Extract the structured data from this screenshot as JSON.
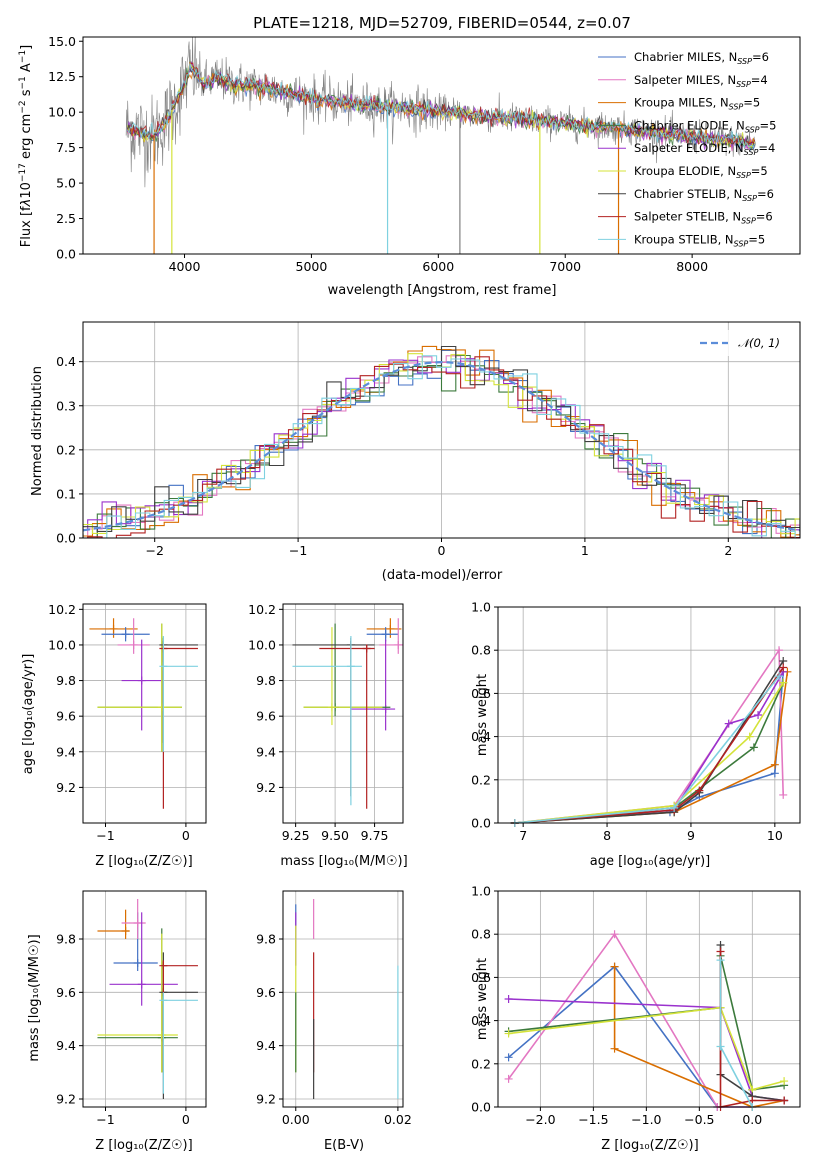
{
  "chart_data": [
    {
      "id": "spectrum",
      "type": "line",
      "title": "PLATE=1218, MJD=52709, FIBERID=0544, z=0.07",
      "xlabel": "wavelength [Angstrom, rest frame]",
      "ylabel": "Flux [f_λ10^{-17} erg cm^{-2} s^{-1} A^{-1}]",
      "xlim": [
        3200,
        8850
      ],
      "ylim": [
        0,
        15.3
      ],
      "xticks": [
        4000,
        5000,
        6000,
        7000,
        8000
      ],
      "yticks": [
        0.0,
        2.5,
        5.0,
        7.5,
        10.0,
        12.5,
        15.0
      ],
      "data_series_color": "#808080",
      "series": [
        {
          "name": "Chabrier MILES, N_SSP=6",
          "color": "#4472c4"
        },
        {
          "name": "Salpeter MILES, N_SSP=4",
          "color": "#e377c2"
        },
        {
          "name": "Kroupa MILES, N_SSP=5",
          "color": "#d96e00"
        },
        {
          "name": "Chabrier ELODIE, N_SSP=5",
          "color": "#3c7a3c"
        },
        {
          "name": "Salpeter ELODIE, N_SSP=4",
          "color": "#9a32cd"
        },
        {
          "name": "Kroupa ELODIE, N_SSP=5",
          "color": "#d4e33a"
        },
        {
          "name": "Chabrier STELIB, N_SSP=6",
          "color": "#404040"
        },
        {
          "name": "Salpeter STELIB, N_SSP=6",
          "color": "#b22222"
        },
        {
          "name": "Kroupa STELIB, N_SSP=5",
          "color": "#7fd1e0"
        }
      ],
      "continuum": {
        "x": [
          3550,
          3650,
          3750,
          3850,
          3950,
          4050,
          4150,
          4250,
          4400,
          4600,
          4800,
          5000,
          5300,
          5600,
          5900,
          6200,
          6500,
          6800,
          7100,
          7400,
          7700,
          8000,
          8300,
          8500
        ],
        "y": [
          8.8,
          8.6,
          8.3,
          9.3,
          11.0,
          13.2,
          12.0,
          12.4,
          12.0,
          11.8,
          11.4,
          11.0,
          10.6,
          10.4,
          10.2,
          9.9,
          9.6,
          9.4,
          9.1,
          8.9,
          8.6,
          8.3,
          8.0,
          7.8
        ]
      },
      "spikes": [
        {
          "x": 3760,
          "color": "#d96e00"
        },
        {
          "x": 3900,
          "color": "#d4e33a"
        },
        {
          "x": 5600,
          "color": "#7fd1e0"
        },
        {
          "x": 6170,
          "color": "#808080"
        },
        {
          "x": 6800,
          "color": "#d4e33a"
        },
        {
          "x": 7420,
          "color": "#d96e00"
        }
      ]
    },
    {
      "id": "residuals",
      "type": "line",
      "xlabel": "(data-model)/error",
      "ylabel": "Normed distribution",
      "xlim": [
        -2.5,
        2.5
      ],
      "ylim": [
        0,
        0.49
      ],
      "xticks": [
        -2,
        -1,
        0,
        1,
        2
      ],
      "yticks": [
        0.0,
        0.1,
        0.2,
        0.3,
        0.4
      ],
      "grid": true,
      "legend": {
        "label": "𝒩(0, 1)",
        "position": "top-right"
      }
    },
    {
      "id": "age-vs-z",
      "type": "scatter",
      "xlabel": "Z [log₁₀(Z/Z☉)]",
      "ylabel": "age  [log₁₀(age/yr)]",
      "xlim": [
        -1.28,
        0.25
      ],
      "ylim": [
        9.0,
        10.23
      ],
      "xticks": [
        -1,
        0
      ],
      "yticks": [
        9.2,
        9.4,
        9.6,
        9.8,
        10.0,
        10.2
      ],
      "grid": true,
      "points": [
        {
          "color": "#d96e00",
          "x": -0.9,
          "xlo": -1.2,
          "xhi": -0.6,
          "y": 10.09,
          "ylo": 10.04,
          "yhi": 10.15
        },
        {
          "color": "#4472c4",
          "x": -0.75,
          "xlo": -1.05,
          "xhi": -0.45,
          "y": 10.06,
          "ylo": 10.02,
          "yhi": 10.1
        },
        {
          "color": "#e377c2",
          "x": -0.65,
          "xlo": -0.85,
          "xhi": -0.45,
          "y": 10.0,
          "ylo": 9.95,
          "yhi": 10.15
        },
        {
          "color": "#9a32cd",
          "x": -0.55,
          "xlo": -0.8,
          "xhi": -0.3,
          "y": 9.8,
          "ylo": 9.52,
          "yhi": 10.03
        },
        {
          "color": "#3c7a3c",
          "x": -0.3,
          "xlo": -1.1,
          "xhi": -0.05,
          "y": 9.65,
          "ylo": 9.4,
          "yhi": 10.12
        },
        {
          "color": "#d4e33a",
          "x": -0.3,
          "xlo": -1.1,
          "xhi": -0.05,
          "y": 9.65,
          "ylo": 9.4,
          "yhi": 10.12
        },
        {
          "color": "#404040",
          "x": -0.28,
          "xlo": -0.28,
          "xhi": 0.15,
          "y": 10.0,
          "ylo": 9.45,
          "yhi": 10.04
        },
        {
          "color": "#b22222",
          "x": -0.28,
          "xlo": -0.28,
          "xhi": 0.15,
          "y": 9.98,
          "ylo": 9.08,
          "yhi": 10.0
        },
        {
          "color": "#7fd1e0",
          "x": -0.28,
          "xlo": -0.28,
          "xhi": 0.15,
          "y": 9.88,
          "ylo": 9.4,
          "yhi": 10.05
        }
      ]
    },
    {
      "id": "age-vs-mass",
      "type": "scatter",
      "xlabel": "mass [log₁₀(M/M☉)]",
      "ylabel": "",
      "xlim": [
        9.17,
        9.93
      ],
      "ylim": [
        9.0,
        10.23
      ],
      "xticks": [
        9.25,
        9.5,
        9.75
      ],
      "yticks": [
        9.2,
        9.4,
        9.6,
        9.8,
        10.0,
        10.2
      ],
      "grid": true,
      "points": [
        {
          "color": "#d96e00",
          "x": 9.85,
          "xlo": 9.7,
          "xhi": 9.92,
          "y": 10.09,
          "ylo": 10.04,
          "yhi": 10.15
        },
        {
          "color": "#4472c4",
          "x": 9.82,
          "xlo": 9.7,
          "xhi": 9.9,
          "y": 10.06,
          "ylo": 10.02,
          "yhi": 10.1
        },
        {
          "color": "#e377c2",
          "x": 9.9,
          "xlo": 9.78,
          "xhi": 9.93,
          "y": 10.0,
          "ylo": 9.95,
          "yhi": 10.15
        },
        {
          "color": "#9a32cd",
          "x": 9.82,
          "xlo": 9.6,
          "xhi": 9.88,
          "y": 9.64,
          "ylo": 9.52,
          "yhi": 10.03
        },
        {
          "color": "#3c7a3c",
          "x": 9.5,
          "xlo": 9.3,
          "xhi": 9.85,
          "y": 9.65,
          "ylo": 9.6,
          "yhi": 10.12
        },
        {
          "color": "#d4e33a",
          "x": 9.48,
          "xlo": 9.3,
          "xhi": 9.8,
          "y": 9.65,
          "ylo": 9.55,
          "yhi": 10.1
        },
        {
          "color": "#404040",
          "x": 9.6,
          "xlo": 9.23,
          "xhi": 9.75,
          "y": 10.0,
          "ylo": 9.15,
          "yhi": 10.04
        },
        {
          "color": "#b22222",
          "x": 9.7,
          "xlo": 9.4,
          "xhi": 9.75,
          "y": 9.98,
          "ylo": 9.08,
          "yhi": 10.0
        },
        {
          "color": "#7fd1e0",
          "x": 9.6,
          "xlo": 9.23,
          "xhi": 9.67,
          "y": 9.88,
          "ylo": 9.1,
          "yhi": 10.05
        }
      ]
    },
    {
      "id": "mass-weight-vs-age",
      "type": "line",
      "xlabel": "age  [log₁₀(age/yr)]",
      "ylabel": "mass weight",
      "xlim": [
        6.7,
        10.3
      ],
      "ylim": [
        0,
        1.0
      ],
      "xticks": [
        7,
        8,
        9,
        10
      ],
      "yticks": [
        0.0,
        0.2,
        0.4,
        0.6,
        0.8,
        1.0
      ],
      "grid": true,
      "series": [
        {
          "color": "#4472c4",
          "x": [
            6.9,
            8.75,
            9.1,
            10.0,
            10.1
          ],
          "y": [
            0.0,
            0.05,
            0.12,
            0.23,
            0.7
          ]
        },
        {
          "color": "#e377c2",
          "x": [
            6.9,
            8.8,
            10.05,
            10.1
          ],
          "y": [
            0.0,
            0.08,
            0.8,
            0.13
          ]
        },
        {
          "color": "#d96e00",
          "x": [
            6.9,
            8.8,
            10.0,
            10.15
          ],
          "y": [
            0.0,
            0.05,
            0.27,
            0.7
          ]
        },
        {
          "color": "#3c7a3c",
          "x": [
            6.9,
            8.8,
            9.75,
            10.1
          ],
          "y": [
            0.0,
            0.07,
            0.35,
            0.65
          ]
        },
        {
          "color": "#9a32cd",
          "x": [
            6.9,
            8.8,
            9.45,
            9.8,
            10.1
          ],
          "y": [
            0.0,
            0.06,
            0.46,
            0.5,
            0.7
          ]
        },
        {
          "color": "#d4e33a",
          "x": [
            6.9,
            8.8,
            9.7,
            10.1
          ],
          "y": [
            0.0,
            0.08,
            0.4,
            0.65
          ]
        },
        {
          "color": "#404040",
          "x": [
            6.9,
            8.8,
            9.1,
            10.1
          ],
          "y": [
            0.0,
            0.05,
            0.14,
            0.75
          ]
        },
        {
          "color": "#b22222",
          "x": [
            6.9,
            8.8,
            9.1,
            10.1
          ],
          "y": [
            0.0,
            0.06,
            0.15,
            0.72
          ]
        },
        {
          "color": "#7fd1e0",
          "x": [
            6.9,
            8.8,
            10.05
          ],
          "y": [
            0.0,
            0.07,
            0.68
          ]
        }
      ]
    },
    {
      "id": "mass-vs-z",
      "type": "scatter",
      "xlabel": "Z [log₁₀(Z/Z☉)]",
      "ylabel": "mass [log₁₀(M/M☉)]",
      "xlim": [
        -1.28,
        0.25
      ],
      "ylim": [
        9.17,
        9.98
      ],
      "xticks": [
        -1,
        0
      ],
      "yticks": [
        9.2,
        9.4,
        9.6,
        9.8
      ],
      "grid": true,
      "points": [
        {
          "color": "#d96e00",
          "x": -0.75,
          "xlo": -1.1,
          "xhi": -0.7,
          "y": 9.83,
          "ylo": 9.8,
          "yhi": 9.91
        },
        {
          "color": "#4472c4",
          "x": -0.6,
          "xlo": -0.9,
          "xhi": -0.35,
          "y": 9.71,
          "ylo": 9.68,
          "yhi": 9.9
        },
        {
          "color": "#e377c2",
          "x": -0.6,
          "xlo": -0.8,
          "xhi": -0.5,
          "y": 9.86,
          "ylo": 9.8,
          "yhi": 9.95
        },
        {
          "color": "#9a32cd",
          "x": -0.55,
          "xlo": -0.95,
          "xhi": -0.1,
          "y": 9.63,
          "ylo": 9.55,
          "yhi": 9.9
        },
        {
          "color": "#3c7a3c",
          "x": -0.3,
          "xlo": -1.1,
          "xhi": -0.1,
          "y": 9.43,
          "ylo": 9.3,
          "yhi": 9.84
        },
        {
          "color": "#d4e33a",
          "x": -0.3,
          "xlo": -1.1,
          "xhi": -0.1,
          "y": 9.44,
          "ylo": 9.3,
          "yhi": 9.82
        },
        {
          "color": "#404040",
          "x": -0.28,
          "xlo": -0.28,
          "xhi": 0.15,
          "y": 9.6,
          "ylo": 9.2,
          "yhi": 9.75
        },
        {
          "color": "#b22222",
          "x": -0.28,
          "xlo": -0.28,
          "xhi": 0.15,
          "y": 9.7,
          "ylo": 9.3,
          "yhi": 9.72
        },
        {
          "color": "#7fd1e0",
          "x": -0.28,
          "xlo": -0.28,
          "xhi": 0.15,
          "y": 9.57,
          "ylo": 9.22,
          "yhi": 9.6
        }
      ]
    },
    {
      "id": "mass-vs-ebv",
      "type": "scatter",
      "xlabel": "E(B-V)",
      "ylabel": "",
      "xlim": [
        -0.0025,
        0.021
      ],
      "ylim": [
        9.17,
        9.98
      ],
      "xticks": [
        0.0,
        0.02
      ],
      "yticks": [
        9.2,
        9.4,
        9.6,
        9.8
      ],
      "grid": true,
      "points": [
        {
          "color": "#4472c4",
          "x": 0.0,
          "ylo": 9.8,
          "yhi": 9.93
        },
        {
          "color": "#9a32cd",
          "x": 0.0,
          "ylo": 9.7,
          "yhi": 9.9
        },
        {
          "color": "#d4e33a",
          "x": 0.0,
          "ylo": 9.3,
          "yhi": 9.85
        },
        {
          "color": "#3c7a3c",
          "x": 0.0,
          "ylo": 9.3,
          "yhi": 9.6
        },
        {
          "color": "#e377c2",
          "x": 0.0035,
          "ylo": 9.8,
          "yhi": 9.95
        },
        {
          "color": "#b22222",
          "x": 0.0035,
          "ylo": 9.3,
          "yhi": 9.75
        },
        {
          "color": "#404040",
          "x": 0.0035,
          "ylo": 9.2,
          "yhi": 9.5
        },
        {
          "color": "#7fd1e0",
          "x": 0.02,
          "ylo": 9.2,
          "yhi": 9.7
        }
      ]
    },
    {
      "id": "mass-weight-vs-z",
      "type": "line",
      "xlabel": "Z [log₁₀(Z/Z☉)]",
      "ylabel": "mass weight",
      "xlim": [
        -2.4,
        0.45
      ],
      "ylim": [
        0,
        1.0
      ],
      "xticks": [
        -2.0,
        -1.5,
        -1.0,
        -0.5,
        0.0
      ],
      "yticks": [
        0.0,
        0.2,
        0.4,
        0.6,
        0.8,
        1.0
      ],
      "grid": true,
      "series": [
        {
          "color": "#4472c4",
          "x": [
            -2.3,
            -1.3,
            -0.33,
            0.0
          ],
          "y": [
            0.23,
            0.65,
            0.0,
            0.0
          ]
        },
        {
          "color": "#e377c2",
          "x": [
            -2.3,
            -1.3,
            -0.33,
            0.0
          ],
          "y": [
            0.13,
            0.8,
            0.0,
            0.0
          ]
        },
        {
          "color": "#d96e00",
          "x": [
            -1.3,
            -1.3,
            0.0,
            0.3
          ],
          "y": [
            0.65,
            0.27,
            0.0,
            0.03
          ]
        },
        {
          "color": "#3c7a3c",
          "x": [
            -2.3,
            -0.3,
            -0.3,
            0.0,
            0.3
          ],
          "y": [
            0.35,
            0.46,
            0.7,
            0.08,
            0.1
          ]
        },
        {
          "color": "#9a32cd",
          "x": [
            -2.3,
            -0.3,
            0.0,
            0.3
          ],
          "y": [
            0.5,
            0.46,
            0.05,
            0.03
          ]
        },
        {
          "color": "#d4e33a",
          "x": [
            -2.3,
            -0.3,
            0.0,
            0.3
          ],
          "y": [
            0.34,
            0.46,
            0.08,
            0.12
          ]
        },
        {
          "color": "#404040",
          "x": [
            -0.3,
            -0.3,
            0.0,
            0.3
          ],
          "y": [
            0.75,
            0.15,
            0.05,
            0.03
          ]
        },
        {
          "color": "#b22222",
          "x": [
            -0.3,
            -0.3,
            0.0,
            0.3
          ],
          "y": [
            0.72,
            0.0,
            0.03,
            0.03
          ]
        },
        {
          "color": "#7fd1e0",
          "x": [
            -0.3,
            -0.3,
            0.0
          ],
          "y": [
            0.68,
            0.28,
            0.0
          ]
        }
      ]
    }
  ]
}
